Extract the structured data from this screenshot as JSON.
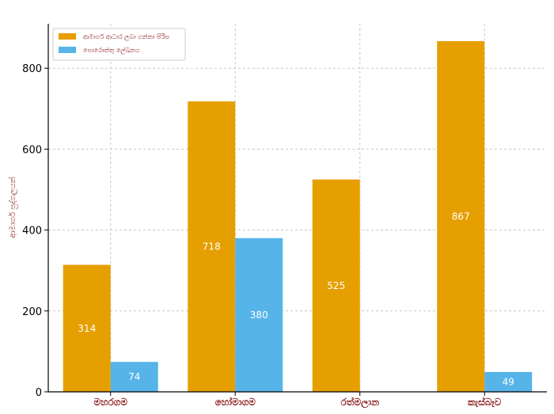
{
  "chart_data": {
    "type": "bar",
    "title": "",
    "xlabel": "",
    "ylabel": "ආමාර්ග පුද්ගලයන්",
    "categories": [
      "මහරගම",
      "හෝමාගම",
      "රත්මලාන",
      "කැස්බෑව"
    ],
    "series": [
      {
        "name": "ආමාර්ග ආධාර ලබා ගන්නා පිරිස",
        "color": "#E69F00",
        "values": [
          314,
          718,
          525,
          867
        ]
      },
      {
        "name": "පොරොත්තු ලේඛනය",
        "color": "#56B4E9",
        "values": [
          74,
          380,
          null,
          49
        ]
      }
    ],
    "ylim": [
      0,
      910
    ],
    "yticks": [
      0,
      200,
      400,
      600,
      800
    ],
    "grid": true,
    "legend": "top-left"
  }
}
